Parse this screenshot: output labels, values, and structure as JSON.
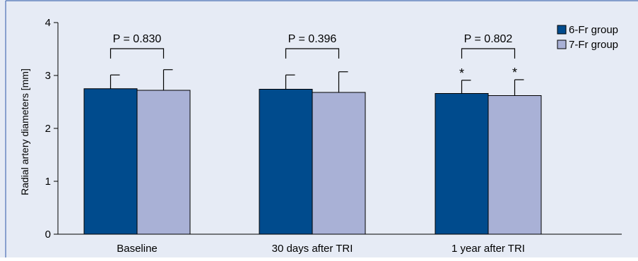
{
  "chart_data": {
    "type": "bar",
    "categories": [
      "Baseline",
      "30 days after TRI",
      "1 year after TRI"
    ],
    "series": [
      {
        "name": "6-Fr group",
        "color": "#004B8D",
        "values": [
          2.75,
          2.74,
          2.66
        ],
        "error_upper": [
          3.01,
          3.01,
          2.91
        ],
        "annotations": [
          "",
          "",
          "*"
        ]
      },
      {
        "name": "7-Fr group",
        "color": "#A9B1D6",
        "values": [
          2.72,
          2.68,
          2.62
        ],
        "error_upper": [
          3.11,
          3.07,
          2.92
        ],
        "annotations": [
          "",
          "",
          "*"
        ]
      }
    ],
    "p_values": [
      "P = 0.830",
      "P = 0.396",
      "P = 0.802"
    ],
    "ylabel": "Radial artery diameters [mm]",
    "xlabel": "",
    "ylim": [
      0,
      4
    ],
    "yticks": [
      0,
      1,
      2,
      3,
      4
    ],
    "legend_position": "top-right",
    "grid": false
  },
  "colors": {
    "background": "#E6EBF5",
    "frame": "#4A6FB5",
    "bar_stroke": "#000000"
  }
}
